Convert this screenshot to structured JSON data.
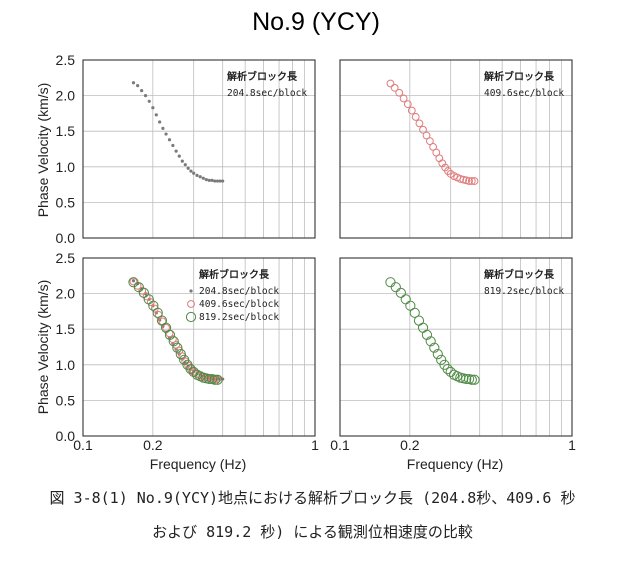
{
  "title": "No.9 (YCY)",
  "y_axis_label": "Phase Velocity (km/s)",
  "x_axis_label": "Frequency (Hz)",
  "legend_heading": "解析ブロック長",
  "caption_line1": "図 3-8(1) No.9(YCY)地点における解析ブロック長 (204.8秒、409.6 秒",
  "caption_line2": "および 819.2 秒) による観測位相速度の比較",
  "colors": {
    "s204": "#7a7a7a",
    "s409": "#e07c7c",
    "s819": "#4f8a45",
    "grid": "#bdbdbd",
    "frame": "#333333"
  },
  "chart_data": [
    {
      "type": "scatter",
      "position": "top-left",
      "xscale": "log",
      "xlim": [
        0.1,
        1
      ],
      "ylim": [
        0,
        2.5
      ],
      "xticks": [
        "0.1",
        "0.2",
        "1"
      ],
      "yticks": [
        "0.0",
        "0.5",
        "1.0",
        "1.5",
        "2.0",
        "2.5"
      ],
      "legend_heading": "解析ブロック長",
      "series": [
        {
          "name": "204.8sec/block",
          "marker": "dot",
          "color": "#7a7a7a",
          "x": [
            0.165,
            0.172,
            0.179,
            0.186,
            0.193,
            0.2,
            0.207,
            0.214,
            0.221,
            0.228,
            0.236,
            0.244,
            0.252,
            0.26,
            0.268,
            0.276,
            0.284,
            0.292,
            0.3,
            0.31,
            0.32,
            0.33,
            0.34,
            0.35,
            0.36,
            0.37,
            0.38,
            0.39,
            0.4
          ],
          "y": [
            2.18,
            2.14,
            2.07,
            2.0,
            1.92,
            1.83,
            1.73,
            1.63,
            1.54,
            1.46,
            1.38,
            1.3,
            1.22,
            1.15,
            1.08,
            1.03,
            0.98,
            0.94,
            0.91,
            0.88,
            0.86,
            0.84,
            0.82,
            0.81,
            0.81,
            0.8,
            0.8,
            0.8,
            0.8
          ]
        }
      ]
    },
    {
      "type": "scatter",
      "position": "top-right",
      "xscale": "log",
      "xlim": [
        0.1,
        1
      ],
      "ylim": [
        0,
        2.5
      ],
      "xticks": [
        "0.1",
        "0.2",
        "1"
      ],
      "yticks": [],
      "legend_heading": "解析ブロック長",
      "series": [
        {
          "name": "409.6sec/block",
          "marker": "circle",
          "color": "#e07c7c",
          "x": [
            0.165,
            0.172,
            0.18,
            0.188,
            0.196,
            0.204,
            0.212,
            0.22,
            0.228,
            0.236,
            0.244,
            0.252,
            0.26,
            0.268,
            0.276,
            0.284,
            0.292,
            0.3,
            0.31,
            0.32,
            0.33,
            0.34,
            0.35,
            0.36,
            0.37,
            0.38
          ],
          "y": [
            2.17,
            2.11,
            2.04,
            1.96,
            1.88,
            1.79,
            1.7,
            1.61,
            1.52,
            1.44,
            1.36,
            1.28,
            1.2,
            1.12,
            1.05,
            0.99,
            0.94,
            0.9,
            0.87,
            0.85,
            0.83,
            0.82,
            0.81,
            0.8,
            0.8,
            0.8
          ]
        }
      ]
    },
    {
      "type": "scatter",
      "position": "bottom-left",
      "xscale": "log",
      "xlim": [
        0.1,
        1
      ],
      "ylim": [
        0,
        2.5
      ],
      "xticks": [
        "0.1",
        "0.2",
        "1"
      ],
      "yticks": [
        "0.0",
        "0.5",
        "1.0",
        "1.5",
        "2.0",
        "2.5"
      ],
      "legend_heading": "解析ブロック長",
      "series": [
        {
          "name": "204.8sec/block",
          "marker": "dot",
          "color": "#7a7a7a",
          "x": [
            0.165,
            0.172,
            0.179,
            0.186,
            0.193,
            0.2,
            0.207,
            0.214,
            0.221,
            0.228,
            0.236,
            0.244,
            0.252,
            0.26,
            0.268,
            0.276,
            0.284,
            0.292,
            0.3,
            0.31,
            0.32,
            0.33,
            0.34,
            0.35,
            0.36,
            0.37,
            0.38,
            0.39,
            0.4
          ],
          "y": [
            2.18,
            2.14,
            2.07,
            2.0,
            1.92,
            1.83,
            1.73,
            1.63,
            1.54,
            1.46,
            1.38,
            1.3,
            1.22,
            1.15,
            1.08,
            1.03,
            0.98,
            0.94,
            0.91,
            0.88,
            0.86,
            0.84,
            0.82,
            0.81,
            0.81,
            0.8,
            0.8,
            0.8,
            0.8
          ]
        },
        {
          "name": "409.6sec/block",
          "marker": "circle",
          "color": "#e07c7c",
          "x": [
            0.165,
            0.172,
            0.18,
            0.188,
            0.196,
            0.204,
            0.212,
            0.22,
            0.228,
            0.236,
            0.244,
            0.252,
            0.26,
            0.268,
            0.276,
            0.284,
            0.292,
            0.3,
            0.31,
            0.32,
            0.33,
            0.34,
            0.35,
            0.36,
            0.37,
            0.38
          ],
          "y": [
            2.17,
            2.11,
            2.04,
            1.96,
            1.88,
            1.79,
            1.7,
            1.61,
            1.52,
            1.44,
            1.36,
            1.28,
            1.2,
            1.12,
            1.05,
            0.99,
            0.94,
            0.9,
            0.87,
            0.85,
            0.83,
            0.82,
            0.81,
            0.8,
            0.8,
            0.8
          ]
        },
        {
          "name": "819.2sec/block",
          "marker": "circle-large",
          "color": "#4f8a45",
          "x": [
            0.165,
            0.174,
            0.183,
            0.192,
            0.201,
            0.21,
            0.219,
            0.228,
            0.237,
            0.246,
            0.255,
            0.264,
            0.273,
            0.282,
            0.291,
            0.3,
            0.31,
            0.32,
            0.33,
            0.34,
            0.35,
            0.36,
            0.37,
            0.38
          ],
          "y": [
            2.16,
            2.09,
            2.01,
            1.92,
            1.83,
            1.73,
            1.62,
            1.52,
            1.42,
            1.33,
            1.24,
            1.15,
            1.07,
            1.0,
            0.94,
            0.9,
            0.86,
            0.84,
            0.82,
            0.81,
            0.8,
            0.8,
            0.79,
            0.79
          ]
        }
      ]
    },
    {
      "type": "scatter",
      "position": "bottom-right",
      "xscale": "log",
      "xlim": [
        0.1,
        1
      ],
      "ylim": [
        0,
        2.5
      ],
      "xticks": [
        "0.1",
        "0.2",
        "1"
      ],
      "yticks": [],
      "legend_heading": "解析ブロック長",
      "series": [
        {
          "name": "819.2sec/block",
          "marker": "circle-large",
          "color": "#4f8a45",
          "x": [
            0.165,
            0.174,
            0.183,
            0.192,
            0.201,
            0.21,
            0.219,
            0.228,
            0.237,
            0.246,
            0.255,
            0.264,
            0.273,
            0.282,
            0.291,
            0.3,
            0.31,
            0.32,
            0.33,
            0.34,
            0.35,
            0.36,
            0.37,
            0.38
          ],
          "y": [
            2.16,
            2.09,
            2.01,
            1.92,
            1.83,
            1.73,
            1.62,
            1.52,
            1.42,
            1.33,
            1.24,
            1.15,
            1.07,
            1.0,
            0.94,
            0.9,
            0.86,
            0.84,
            0.82,
            0.81,
            0.8,
            0.8,
            0.79,
            0.79
          ]
        }
      ]
    }
  ]
}
